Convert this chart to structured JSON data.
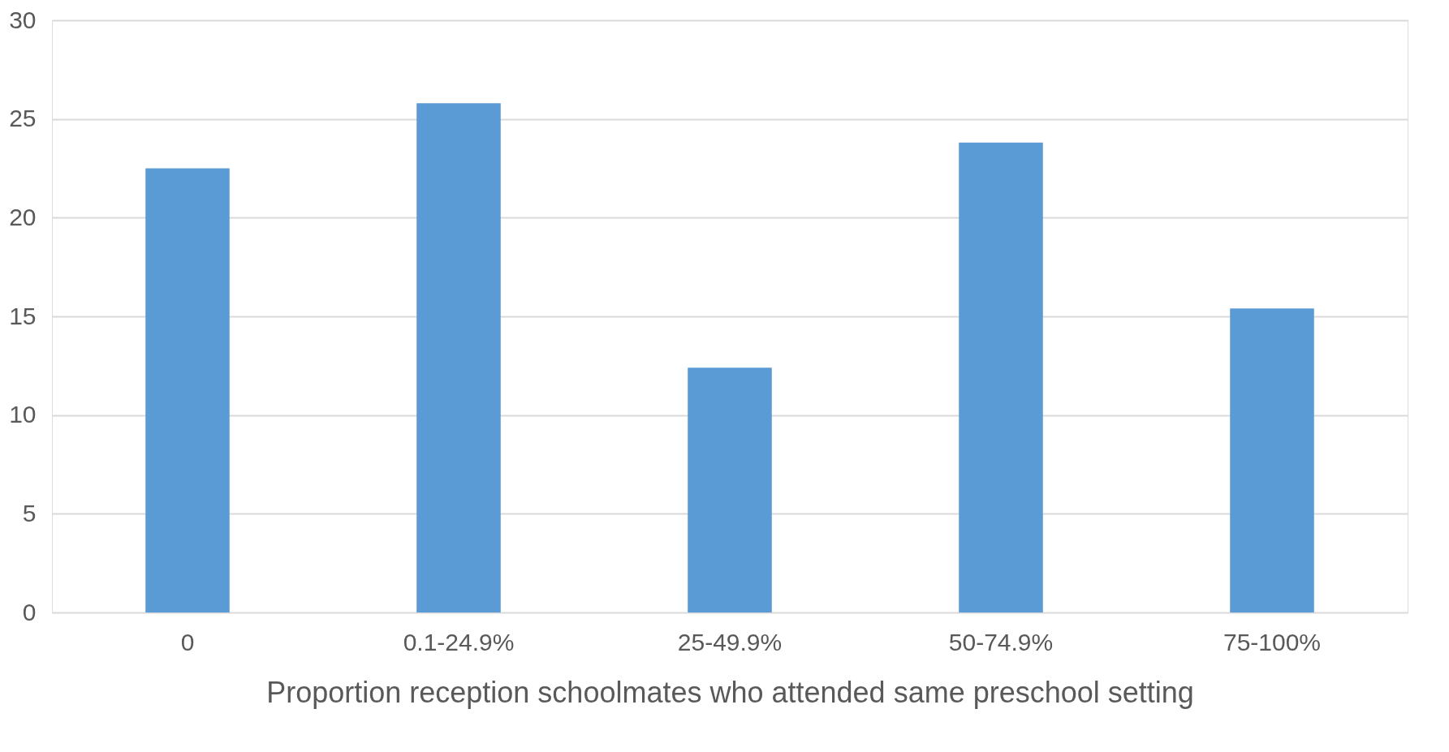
{
  "chart_data": {
    "type": "bar",
    "xlabel": "Proportion reception schoolmates who attended same preschool setting",
    "categories": [
      "0",
      "0.1-24.9%",
      "25-49.9%",
      "50-74.9%",
      "75-100%"
    ],
    "values": [
      22.5,
      25.8,
      12.4,
      23.8,
      15.4
    ],
    "color": "#5b9bd5",
    "ylim": [
      0,
      30
    ],
    "yticks": [
      0,
      5,
      10,
      15,
      20,
      25,
      30
    ],
    "grid": "y"
  }
}
